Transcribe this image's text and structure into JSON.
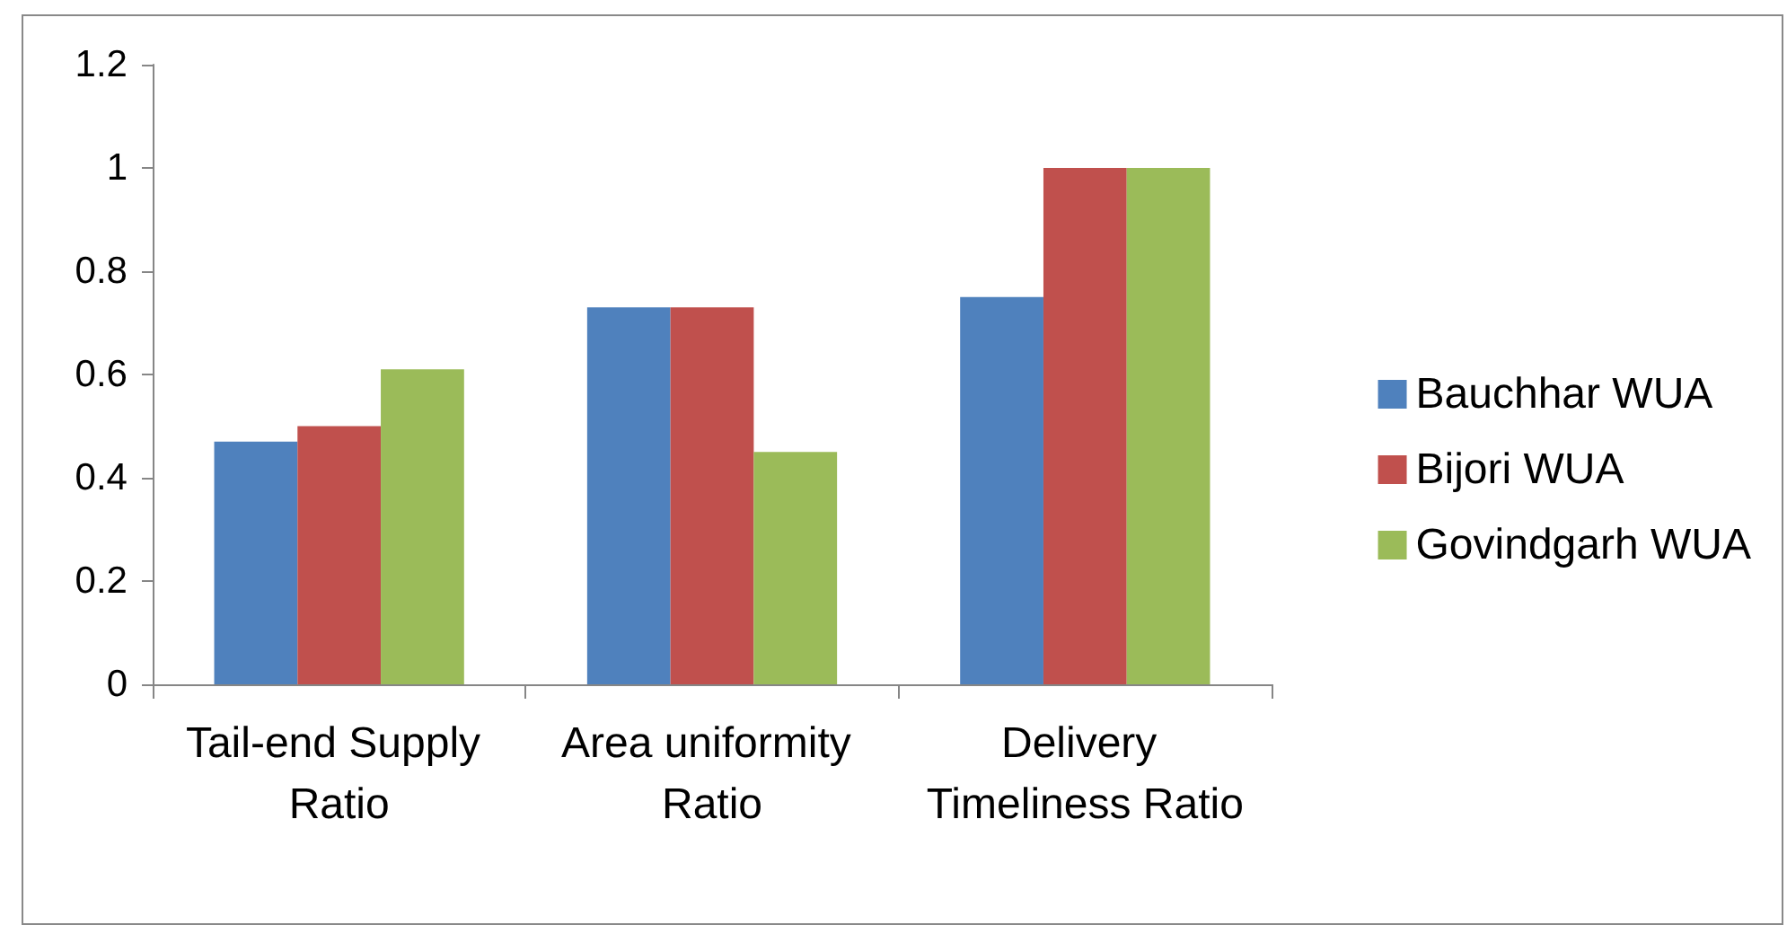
{
  "chart_data": {
    "type": "bar",
    "categories": [
      "Tail-end Supply Ratio",
      "Area uniformity Ratio",
      "Delivery Timeliness Ratio"
    ],
    "series": [
      {
        "name": "Bauchhar WUA",
        "color": "#4f81bd",
        "values": [
          0.47,
          0.73,
          0.75
        ]
      },
      {
        "name": "Bijori WUA",
        "color": "#c0504d",
        "values": [
          0.5,
          0.73,
          1
        ]
      },
      {
        "name": "Govindgarh WUA",
        "color": "#9bbb59",
        "values": [
          0.61,
          0.45,
          1
        ]
      }
    ],
    "ylim": [
      0,
      1.2
    ],
    "yticks": [
      0,
      0.2,
      0.4,
      0.6,
      0.8,
      1,
      1.2
    ],
    "grid": false,
    "legend": "right"
  }
}
